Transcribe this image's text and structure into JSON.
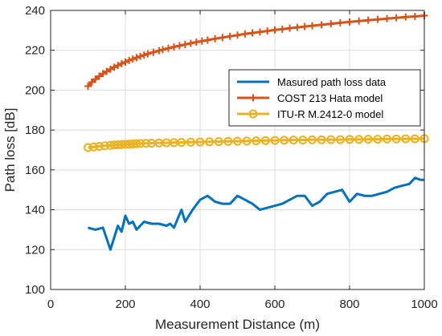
{
  "chart_data": {
    "type": "line",
    "xlabel": "Measurement Distance (m)",
    "ylabel": "Path loss [dB]",
    "xlim": [
      0,
      1000
    ],
    "ylim": [
      100,
      240
    ],
    "xticks": [
      0,
      200,
      400,
      600,
      800,
      1000
    ],
    "yticks": [
      100,
      120,
      140,
      160,
      180,
      200,
      220,
      240
    ],
    "grid": true,
    "legend_position": "right",
    "series": [
      {
        "name": "Masured path loss data",
        "color": "#0072BD",
        "marker": "none",
        "x": [
          100,
          120,
          140,
          160,
          180,
          190,
          200,
          210,
          220,
          230,
          250,
          270,
          290,
          310,
          320,
          330,
          350,
          360,
          380,
          400,
          420,
          440,
          460,
          480,
          500,
          520,
          540,
          560,
          580,
          600,
          620,
          640,
          660,
          680,
          700,
          720,
          740,
          760,
          780,
          790,
          800,
          820,
          840,
          860,
          880,
          900,
          920,
          940,
          960,
          975,
          990,
          1000
        ],
        "values": [
          131,
          130,
          131,
          120,
          132,
          129,
          137,
          133,
          134,
          130,
          134,
          133,
          133,
          132,
          133,
          131,
          140,
          134,
          140,
          145,
          147,
          144,
          143,
          143,
          147,
          145,
          143,
          140,
          141,
          142,
          143,
          145,
          147,
          147,
          142,
          144,
          148,
          149,
          150,
          147,
          144,
          148,
          147,
          147,
          148,
          149,
          151,
          152,
          153,
          156,
          155,
          155
        ]
      },
      {
        "name": "COST 213 Hata model",
        "color": "#D95319",
        "marker": "+",
        "x": [
          100,
          110,
          120,
          130,
          140,
          150,
          160,
          170,
          180,
          190,
          200,
          210,
          220,
          230,
          240,
          250,
          260,
          275,
          290,
          300,
          315,
          330,
          345,
          360,
          375,
          390,
          405,
          420,
          440,
          460,
          480,
          500,
          520,
          540,
          560,
          580,
          600,
          620,
          640,
          660,
          680,
          700,
          725,
          750,
          775,
          800,
          825,
          850,
          875,
          900,
          925,
          950,
          975,
          1000
        ],
        "values": [
          202,
          204,
          205.5,
          207,
          208.3,
          209.4,
          210.5,
          211.5,
          212.4,
          213.3,
          214.1,
          214.9,
          215.6,
          216.3,
          217,
          217.6,
          218.2,
          219,
          219.8,
          220.3,
          221,
          221.7,
          222.3,
          222.9,
          223.5,
          224.1,
          224.6,
          225.1,
          225.8,
          226.4,
          227,
          227.6,
          228.2,
          228.7,
          229.2,
          229.7,
          230.2,
          230.6,
          231.1,
          231.5,
          231.9,
          232.3,
          232.8,
          233.3,
          233.8,
          234.2,
          234.7,
          235.1,
          235.5,
          235.9,
          236.3,
          236.7,
          237,
          237.4
        ]
      },
      {
        "name": "ITU-R M.2412-0 model",
        "color": "#EDB120",
        "marker": "o",
        "x": [
          100,
          115,
          130,
          145,
          160,
          170,
          180,
          190,
          200,
          210,
          220,
          230,
          240,
          255,
          270,
          290,
          310,
          330,
          350,
          375,
          400,
          425,
          450,
          475,
          500,
          525,
          550,
          575,
          600,
          625,
          650,
          675,
          700,
          725,
          750,
          775,
          800,
          825,
          850,
          875,
          900,
          925,
          950,
          975,
          1000
        ],
        "values": [
          171.2,
          171.5,
          171.8,
          172.1,
          172.3,
          172.5,
          172.6,
          172.7,
          172.8,
          172.9,
          173,
          173.1,
          173.2,
          173.3,
          173.4,
          173.5,
          173.6,
          173.7,
          173.8,
          173.9,
          174,
          174.1,
          174.2,
          174.3,
          174.4,
          174.5,
          174.6,
          174.7,
          174.8,
          174.9,
          175,
          175,
          175.1,
          175.1,
          175.2,
          175.2,
          175.3,
          175.3,
          175.4,
          175.4,
          175.5,
          175.5,
          175.6,
          175.6,
          175.7
        ]
      }
    ]
  }
}
